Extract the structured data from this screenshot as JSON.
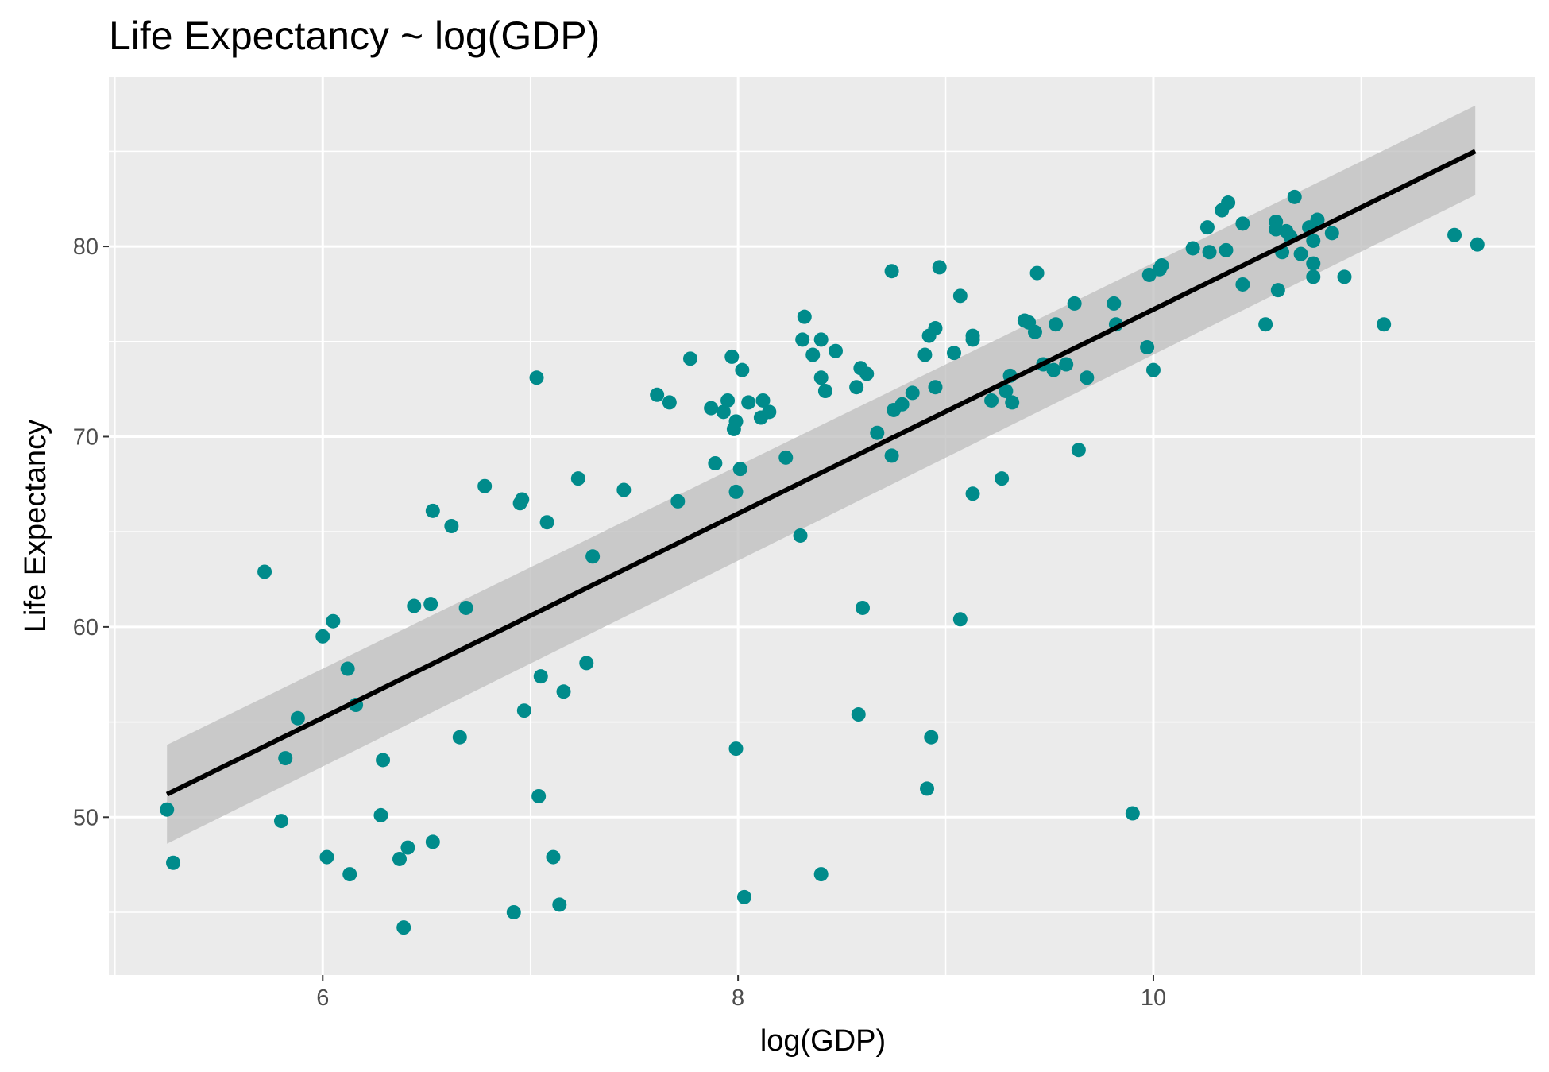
{
  "chart_data": {
    "type": "scatter",
    "title": "Life Expectancy ~ log(GDP)",
    "xlabel": "log(GDP)",
    "ylabel": "Life Expectancy",
    "xlim": [
      4.97,
      11.84
    ],
    "ylim": [
      41.7,
      88.9
    ],
    "x_ticks": [
      6,
      8,
      10
    ],
    "x_tick_labels": [
      "6",
      "8",
      "10"
    ],
    "x_minor_ticks": [
      5,
      7,
      9,
      11
    ],
    "y_ticks": [
      50,
      60,
      70,
      80
    ],
    "y_tick_labels": [
      "50",
      "60",
      "70",
      "80"
    ],
    "y_minor_ticks": [
      45,
      55,
      65,
      75,
      85
    ],
    "grid": true,
    "legend": "none",
    "colors": {
      "panel": "#EBEBEB",
      "grid": "#FFFFFF",
      "points": "#008B8B",
      "fit_line": "#000000",
      "confidence_band": "#BEBEBE",
      "tick_label": "#4D4D4D"
    },
    "fit": {
      "method": "linear",
      "x_start": 5.25,
      "y_start": 51.2,
      "x_end": 11.55,
      "y_end": 85.0,
      "band_lower_start": 48.6,
      "band_upper_start": 53.8,
      "band_lower_end": 82.7,
      "band_upper_end": 87.4
    },
    "points": [
      [
        5.25,
        50.4
      ],
      [
        5.28,
        47.6
      ],
      [
        5.72,
        62.9
      ],
      [
        5.8,
        49.8
      ],
      [
        5.82,
        53.1
      ],
      [
        5.88,
        55.2
      ],
      [
        6.0,
        59.5
      ],
      [
        6.02,
        47.9
      ],
      [
        6.05,
        60.3
      ],
      [
        6.12,
        57.8
      ],
      [
        6.13,
        47.0
      ],
      [
        6.16,
        55.9
      ],
      [
        6.28,
        50.1
      ],
      [
        6.29,
        53.0
      ],
      [
        6.37,
        47.8
      ],
      [
        6.39,
        44.2
      ],
      [
        6.41,
        48.4
      ],
      [
        6.44,
        61.1
      ],
      [
        6.52,
        61.2
      ],
      [
        6.53,
        66.1
      ],
      [
        6.53,
        48.7
      ],
      [
        6.62,
        65.3
      ],
      [
        6.66,
        54.2
      ],
      [
        6.69,
        61.0
      ],
      [
        6.78,
        67.4
      ],
      [
        6.92,
        45.0
      ],
      [
        6.95,
        66.5
      ],
      [
        6.96,
        66.7
      ],
      [
        6.97,
        55.6
      ],
      [
        7.03,
        73.1
      ],
      [
        7.04,
        51.1
      ],
      [
        7.05,
        57.4
      ],
      [
        7.08,
        65.5
      ],
      [
        7.11,
        47.9
      ],
      [
        7.14,
        45.4
      ],
      [
        7.16,
        56.6
      ],
      [
        7.23,
        67.8
      ],
      [
        7.27,
        58.1
      ],
      [
        7.3,
        63.7
      ],
      [
        7.45,
        67.2
      ],
      [
        7.61,
        72.2
      ],
      [
        7.67,
        71.8
      ],
      [
        7.71,
        66.6
      ],
      [
        7.77,
        74.1
      ],
      [
        7.87,
        71.5
      ],
      [
        7.89,
        68.6
      ],
      [
        7.93,
        71.3
      ],
      [
        7.95,
        71.9
      ],
      [
        7.97,
        74.2
      ],
      [
        7.98,
        70.4
      ],
      [
        7.99,
        70.8
      ],
      [
        7.99,
        67.1
      ],
      [
        7.99,
        53.6
      ],
      [
        8.01,
        68.3
      ],
      [
        8.02,
        73.5
      ],
      [
        8.03,
        45.8
      ],
      [
        8.05,
        71.8
      ],
      [
        8.11,
        71.0
      ],
      [
        8.12,
        71.9
      ],
      [
        8.15,
        71.3
      ],
      [
        8.23,
        68.9
      ],
      [
        8.3,
        64.8
      ],
      [
        8.31,
        75.1
      ],
      [
        8.32,
        76.3
      ],
      [
        8.36,
        74.3
      ],
      [
        8.4,
        75.1
      ],
      [
        8.4,
        73.1
      ],
      [
        8.4,
        47.0
      ],
      [
        8.42,
        72.4
      ],
      [
        8.47,
        74.5
      ],
      [
        8.57,
        72.6
      ],
      [
        8.58,
        55.4
      ],
      [
        8.59,
        73.6
      ],
      [
        8.6,
        61.0
      ],
      [
        8.62,
        73.3
      ],
      [
        8.67,
        70.2
      ],
      [
        8.74,
        69.0
      ],
      [
        8.74,
        78.7
      ],
      [
        8.75,
        71.4
      ],
      [
        8.79,
        71.7
      ],
      [
        8.84,
        72.3
      ],
      [
        8.9,
        74.3
      ],
      [
        8.91,
        51.5
      ],
      [
        8.92,
        75.3
      ],
      [
        8.93,
        54.2
      ],
      [
        8.95,
        75.7
      ],
      [
        8.95,
        72.6
      ],
      [
        8.97,
        78.9
      ],
      [
        9.04,
        74.4
      ],
      [
        9.07,
        77.4
      ],
      [
        9.07,
        60.4
      ],
      [
        9.13,
        75.3
      ],
      [
        9.13,
        75.1
      ],
      [
        9.13,
        67.0
      ],
      [
        9.22,
        71.9
      ],
      [
        9.27,
        67.8
      ],
      [
        9.29,
        72.4
      ],
      [
        9.31,
        73.2
      ],
      [
        9.32,
        71.8
      ],
      [
        9.38,
        76.1
      ],
      [
        9.4,
        76.0
      ],
      [
        9.43,
        75.5
      ],
      [
        9.44,
        78.6
      ],
      [
        9.47,
        73.8
      ],
      [
        9.52,
        73.5
      ],
      [
        9.53,
        75.9
      ],
      [
        9.58,
        73.8
      ],
      [
        9.62,
        77.0
      ],
      [
        9.64,
        69.3
      ],
      [
        9.68,
        73.1
      ],
      [
        9.81,
        77.0
      ],
      [
        9.82,
        75.9
      ],
      [
        9.9,
        50.2
      ],
      [
        9.97,
        74.7
      ],
      [
        9.98,
        78.5
      ],
      [
        10.0,
        73.5
      ],
      [
        10.03,
        78.8
      ],
      [
        10.04,
        79.0
      ],
      [
        10.19,
        79.9
      ],
      [
        10.26,
        81.0
      ],
      [
        10.27,
        79.7
      ],
      [
        10.33,
        81.9
      ],
      [
        10.35,
        79.8
      ],
      [
        10.36,
        82.3
      ],
      [
        10.43,
        81.2
      ],
      [
        10.43,
        78.0
      ],
      [
        10.54,
        75.9
      ],
      [
        10.59,
        81.3
      ],
      [
        10.59,
        80.9
      ],
      [
        10.6,
        77.7
      ],
      [
        10.62,
        79.7
      ],
      [
        10.64,
        80.8
      ],
      [
        10.66,
        80.5
      ],
      [
        10.68,
        82.6
      ],
      [
        10.71,
        79.6
      ],
      [
        10.75,
        81.0
      ],
      [
        10.77,
        80.3
      ],
      [
        10.77,
        79.1
      ],
      [
        10.77,
        78.4
      ],
      [
        10.79,
        81.4
      ],
      [
        10.86,
        80.7
      ],
      [
        10.92,
        78.4
      ],
      [
        11.11,
        75.9
      ],
      [
        11.45,
        80.6
      ],
      [
        11.56,
        80.1
      ]
    ]
  }
}
